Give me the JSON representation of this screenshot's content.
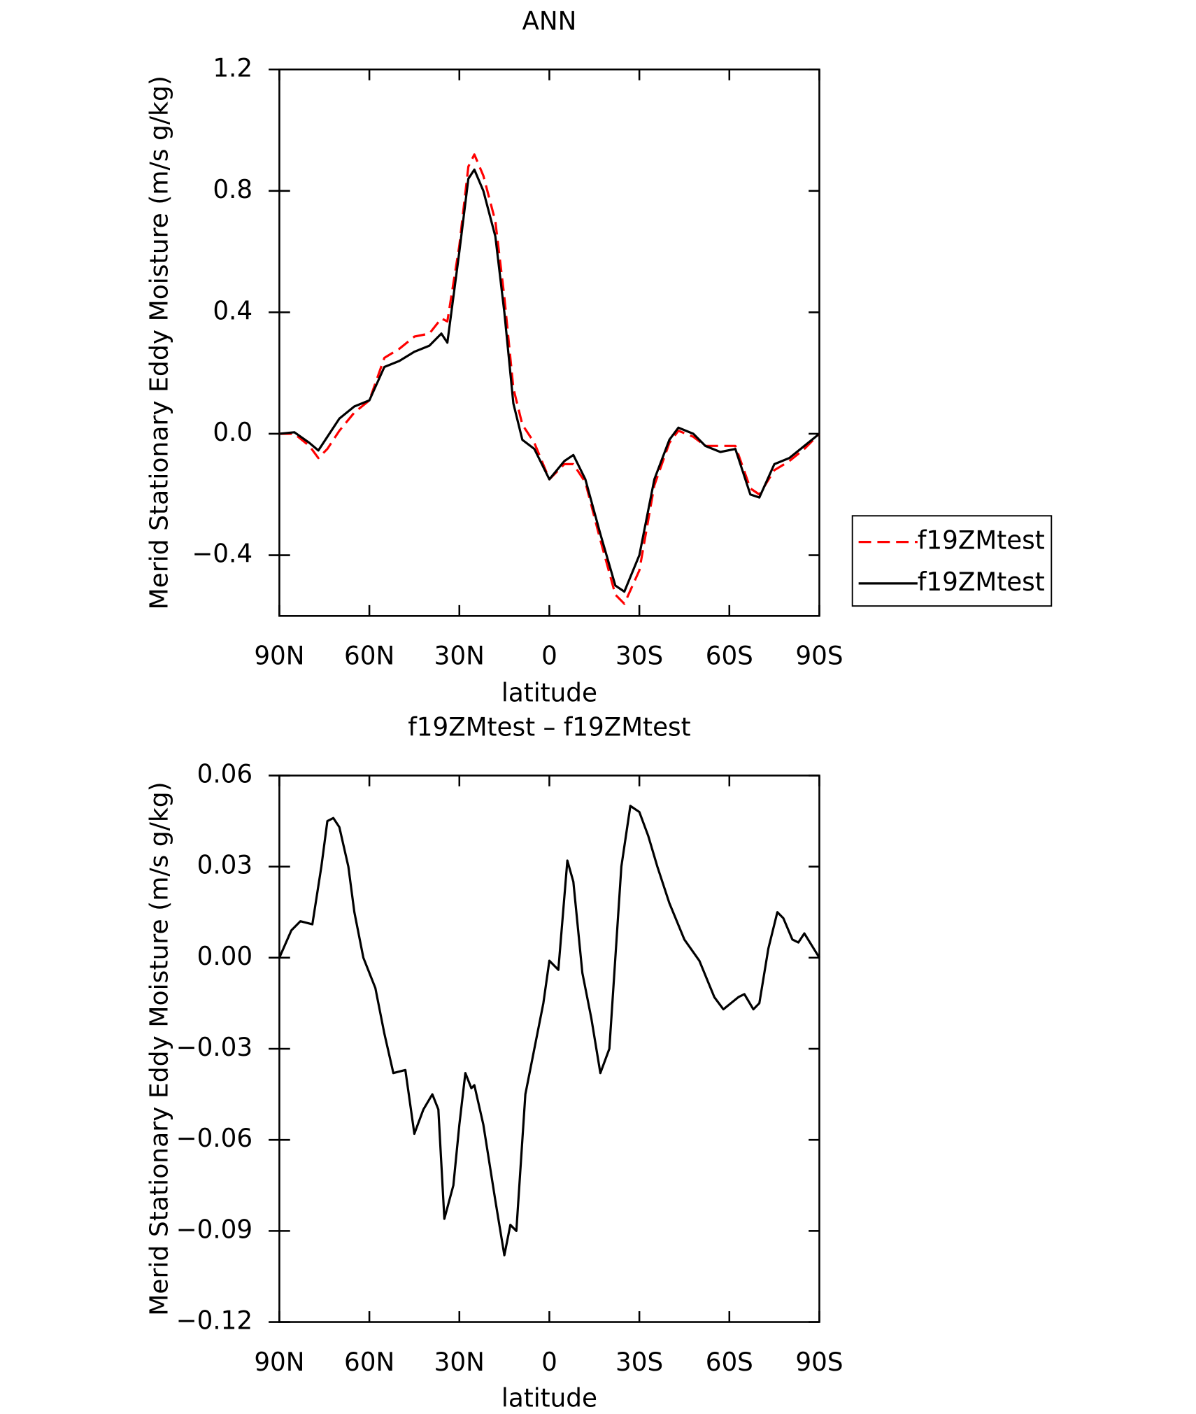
{
  "chart_data": [
    {
      "type": "line",
      "title": "ANN",
      "xlabel": "latitude",
      "ylabel": "Merid Stationary Eddy Moisture (m/s g/kg)",
      "xlim": [
        90,
        -90
      ],
      "xticks": [
        {
          "value": 90,
          "label": "90N"
        },
        {
          "value": 60,
          "label": "60N"
        },
        {
          "value": 30,
          "label": "30N"
        },
        0,
        {
          "value": -30,
          "label": "30S"
        },
        {
          "value": -60,
          "label": "60S"
        },
        {
          "value": -90,
          "label": "90S"
        }
      ],
      "ylim": [
        -0.6,
        1.2
      ],
      "yticks": [
        {
          "value": -0.4,
          "label": "−0.4"
        },
        {
          "value": 0,
          "label": "0.0"
        },
        0.4,
        0.8,
        1.2
      ],
      "x": [
        90,
        85,
        80,
        77,
        74,
        70,
        65,
        60,
        55,
        50,
        45,
        40,
        36,
        34,
        30,
        27,
        25,
        22,
        18,
        15,
        12,
        9,
        5,
        0,
        -5,
        -8,
        -12,
        -17,
        -22,
        -25,
        -30,
        -35,
        -40,
        -43,
        -48,
        -52,
        -57,
        -62,
        -67,
        -70,
        -75,
        -80,
        -85,
        -90
      ],
      "series": [
        {
          "name": "f19ZMtest",
          "color": "#ff0000",
          "dashed": true,
          "values": [
            0,
            0,
            -0.04,
            -0.08,
            -0.05,
            0.01,
            0.07,
            0.11,
            0.25,
            0.28,
            0.32,
            0.33,
            0.38,
            0.37,
            0.62,
            0.88,
            0.92,
            0.85,
            0.7,
            0.45,
            0.15,
            0.03,
            -0.03,
            -0.15,
            -0.1,
            -0.1,
            -0.16,
            -0.35,
            -0.53,
            -0.56,
            -0.45,
            -0.17,
            -0.03,
            0.01,
            -0.01,
            -0.04,
            -0.04,
            -0.04,
            -0.18,
            -0.2,
            -0.12,
            -0.09,
            -0.05,
            0
          ]
        },
        {
          "name": "f19ZMtest",
          "color": "#000000",
          "dashed": false,
          "values": [
            0,
            0.005,
            -0.03,
            -0.055,
            -0.01,
            0.05,
            0.09,
            0.11,
            0.22,
            0.24,
            0.27,
            0.29,
            0.33,
            0.3,
            0.6,
            0.84,
            0.87,
            0.8,
            0.65,
            0.4,
            0.1,
            -0.02,
            -0.05,
            -0.15,
            -0.09,
            -0.07,
            -0.15,
            -0.33,
            -0.5,
            -0.52,
            -0.4,
            -0.15,
            -0.02,
            0.02,
            0,
            -0.04,
            -0.06,
            -0.05,
            -0.2,
            -0.21,
            -0.1,
            -0.08,
            -0.04,
            0
          ]
        }
      ]
    },
    {
      "type": "line",
      "title": "f19ZMtest – f19ZMtest",
      "xlabel": "latitude",
      "ylabel": "Merid Stationary Eddy Moisture (m/s g/kg)",
      "xlim": [
        90,
        -90
      ],
      "xticks": [
        {
          "value": 90,
          "label": "90N"
        },
        {
          "value": 60,
          "label": "60N"
        },
        {
          "value": 30,
          "label": "30N"
        },
        0,
        {
          "value": -30,
          "label": "30S"
        },
        {
          "value": -60,
          "label": "60S"
        },
        {
          "value": -90,
          "label": "90S"
        }
      ],
      "ylim": [
        -0.12,
        0.06
      ],
      "yticks": [
        {
          "value": -0.12,
          "label": "−0.12"
        },
        {
          "value": -0.09,
          "label": "−0.09"
        },
        {
          "value": -0.06,
          "label": "−0.06"
        },
        {
          "value": -0.03,
          "label": "−0.03"
        },
        {
          "value": 0,
          "label": "0.00"
        },
        0.03,
        0.06
      ],
      "x": [
        90,
        86,
        83,
        79,
        76,
        74,
        72,
        70,
        67,
        65,
        62,
        58,
        55,
        52,
        48,
        45,
        42,
        39,
        37,
        35,
        32,
        30,
        28,
        26,
        25,
        22,
        18,
        15,
        13,
        11,
        8,
        5,
        2,
        0,
        -3,
        -5,
        -6,
        -8,
        -11,
        -14,
        -17,
        -20,
        -24,
        -27,
        -30,
        -33,
        -36,
        -40,
        -45,
        -50,
        -55,
        -58,
        -63,
        -65,
        -68,
        -70,
        -73,
        -76,
        -78,
        -81,
        -83,
        -85,
        -90
      ],
      "series": [
        {
          "color": "#000000",
          "dashed": false,
          "values": [
            0,
            0.009,
            0.012,
            0.011,
            0.03,
            0.045,
            0.046,
            0.043,
            0.03,
            0.015,
            0,
            -0.01,
            -0.025,
            -0.038,
            -0.037,
            -0.058,
            -0.05,
            -0.045,
            -0.05,
            -0.086,
            -0.075,
            -0.055,
            -0.038,
            -0.043,
            -0.042,
            -0.055,
            -0.08,
            -0.098,
            -0.088,
            -0.09,
            -0.045,
            -0.03,
            -0.015,
            -0.001,
            -0.004,
            0.02,
            0.032,
            0.025,
            -0.005,
            -0.02,
            -0.038,
            -0.03,
            0.03,
            0.05,
            0.048,
            0.04,
            0.03,
            0.018,
            0.006,
            -0.001,
            -0.013,
            -0.017,
            -0.013,
            -0.012,
            -0.017,
            -0.015,
            0.003,
            0.015,
            0.013,
            0.006,
            0.005,
            0.008,
            0
          ]
        }
      ]
    }
  ]
}
